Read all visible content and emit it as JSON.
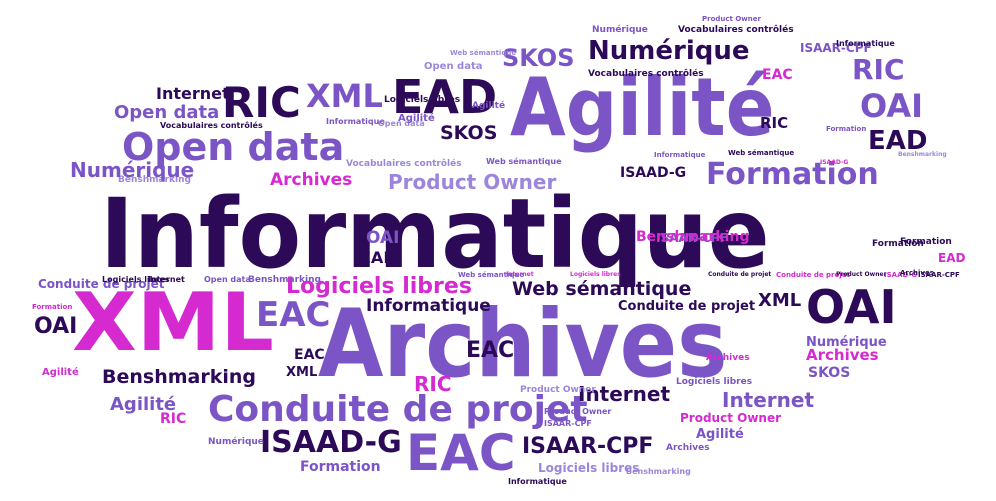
{
  "palette": {
    "dark": "#2c0a57",
    "purple": "#7b55c6",
    "magenta": "#d42ad0",
    "light": "#9c86db",
    "background": "#ffffff"
  },
  "words": [
    "Informatique",
    "Archives",
    "XML",
    "Agilité",
    "Open data",
    "OAI",
    "EAD",
    "RIC",
    "XML",
    "Numérique",
    "Formation",
    "Conduite de projet",
    "EAC",
    "ISAAD-G",
    "ISAAR-CPF",
    "SKOS",
    "Logiciels libres",
    "Web sémantique",
    "Product Owner",
    "Benshmarking",
    "Internet",
    "Agilité",
    "Archives",
    "RIC",
    "EAC",
    "EAC",
    "XML",
    "Informatique",
    "Conduite de projet",
    "Internet",
    "Open data",
    "SKOS",
    "OAI",
    "RIC",
    "EAD",
    "Internet",
    "Formation",
    "Benshmarking",
    "Archives",
    "ISAAD-G",
    "Logiciels libres",
    "Product Owner",
    "OAI",
    "EAD",
    "OAI",
    "RIC",
    "EAC",
    "XML",
    "Numérique",
    "Archives",
    "SKOS",
    "Agilité",
    "Product Owner",
    "Agilité",
    "RIC",
    "Formation",
    "ISAAR-CPF",
    "Archives",
    "Formation",
    "EAD",
    "Numérique",
    "Web sémantique",
    "Product Owner",
    "Vocabulaires contrôlés",
    "ISAAR-CPF",
    "Informatique",
    "Open data",
    "Vocabulaires contrôlés",
    "EAC",
    "Logiciels libres",
    "Open data",
    "Formation",
    "Web sémantique",
    "Numérique",
    "Vocabulaires contrôlés",
    "Informatique",
    "ISAAD-G",
    "Benshmarking",
    "Web sémantique",
    "Informatique",
    "Open data",
    "Benshmarking",
    "Internet",
    "Logiciels libres",
    "Conduite de projet",
    "Conduite de projet",
    "Product Owner",
    "ISAAD-G",
    "ISAAR-CPF",
    "Web sémantique",
    "Vocabulaires contrôlés",
    "Agilité",
    "Numérique",
    "Conduite de projet",
    "Logiciels libres",
    "Internet",
    "Formation",
    "Benshmarking",
    "ISAAR-CPF",
    "Archives",
    "Agilité",
    "Logiciels libres",
    "Benshmarking",
    "Product Owner",
    "Informatique"
  ]
}
